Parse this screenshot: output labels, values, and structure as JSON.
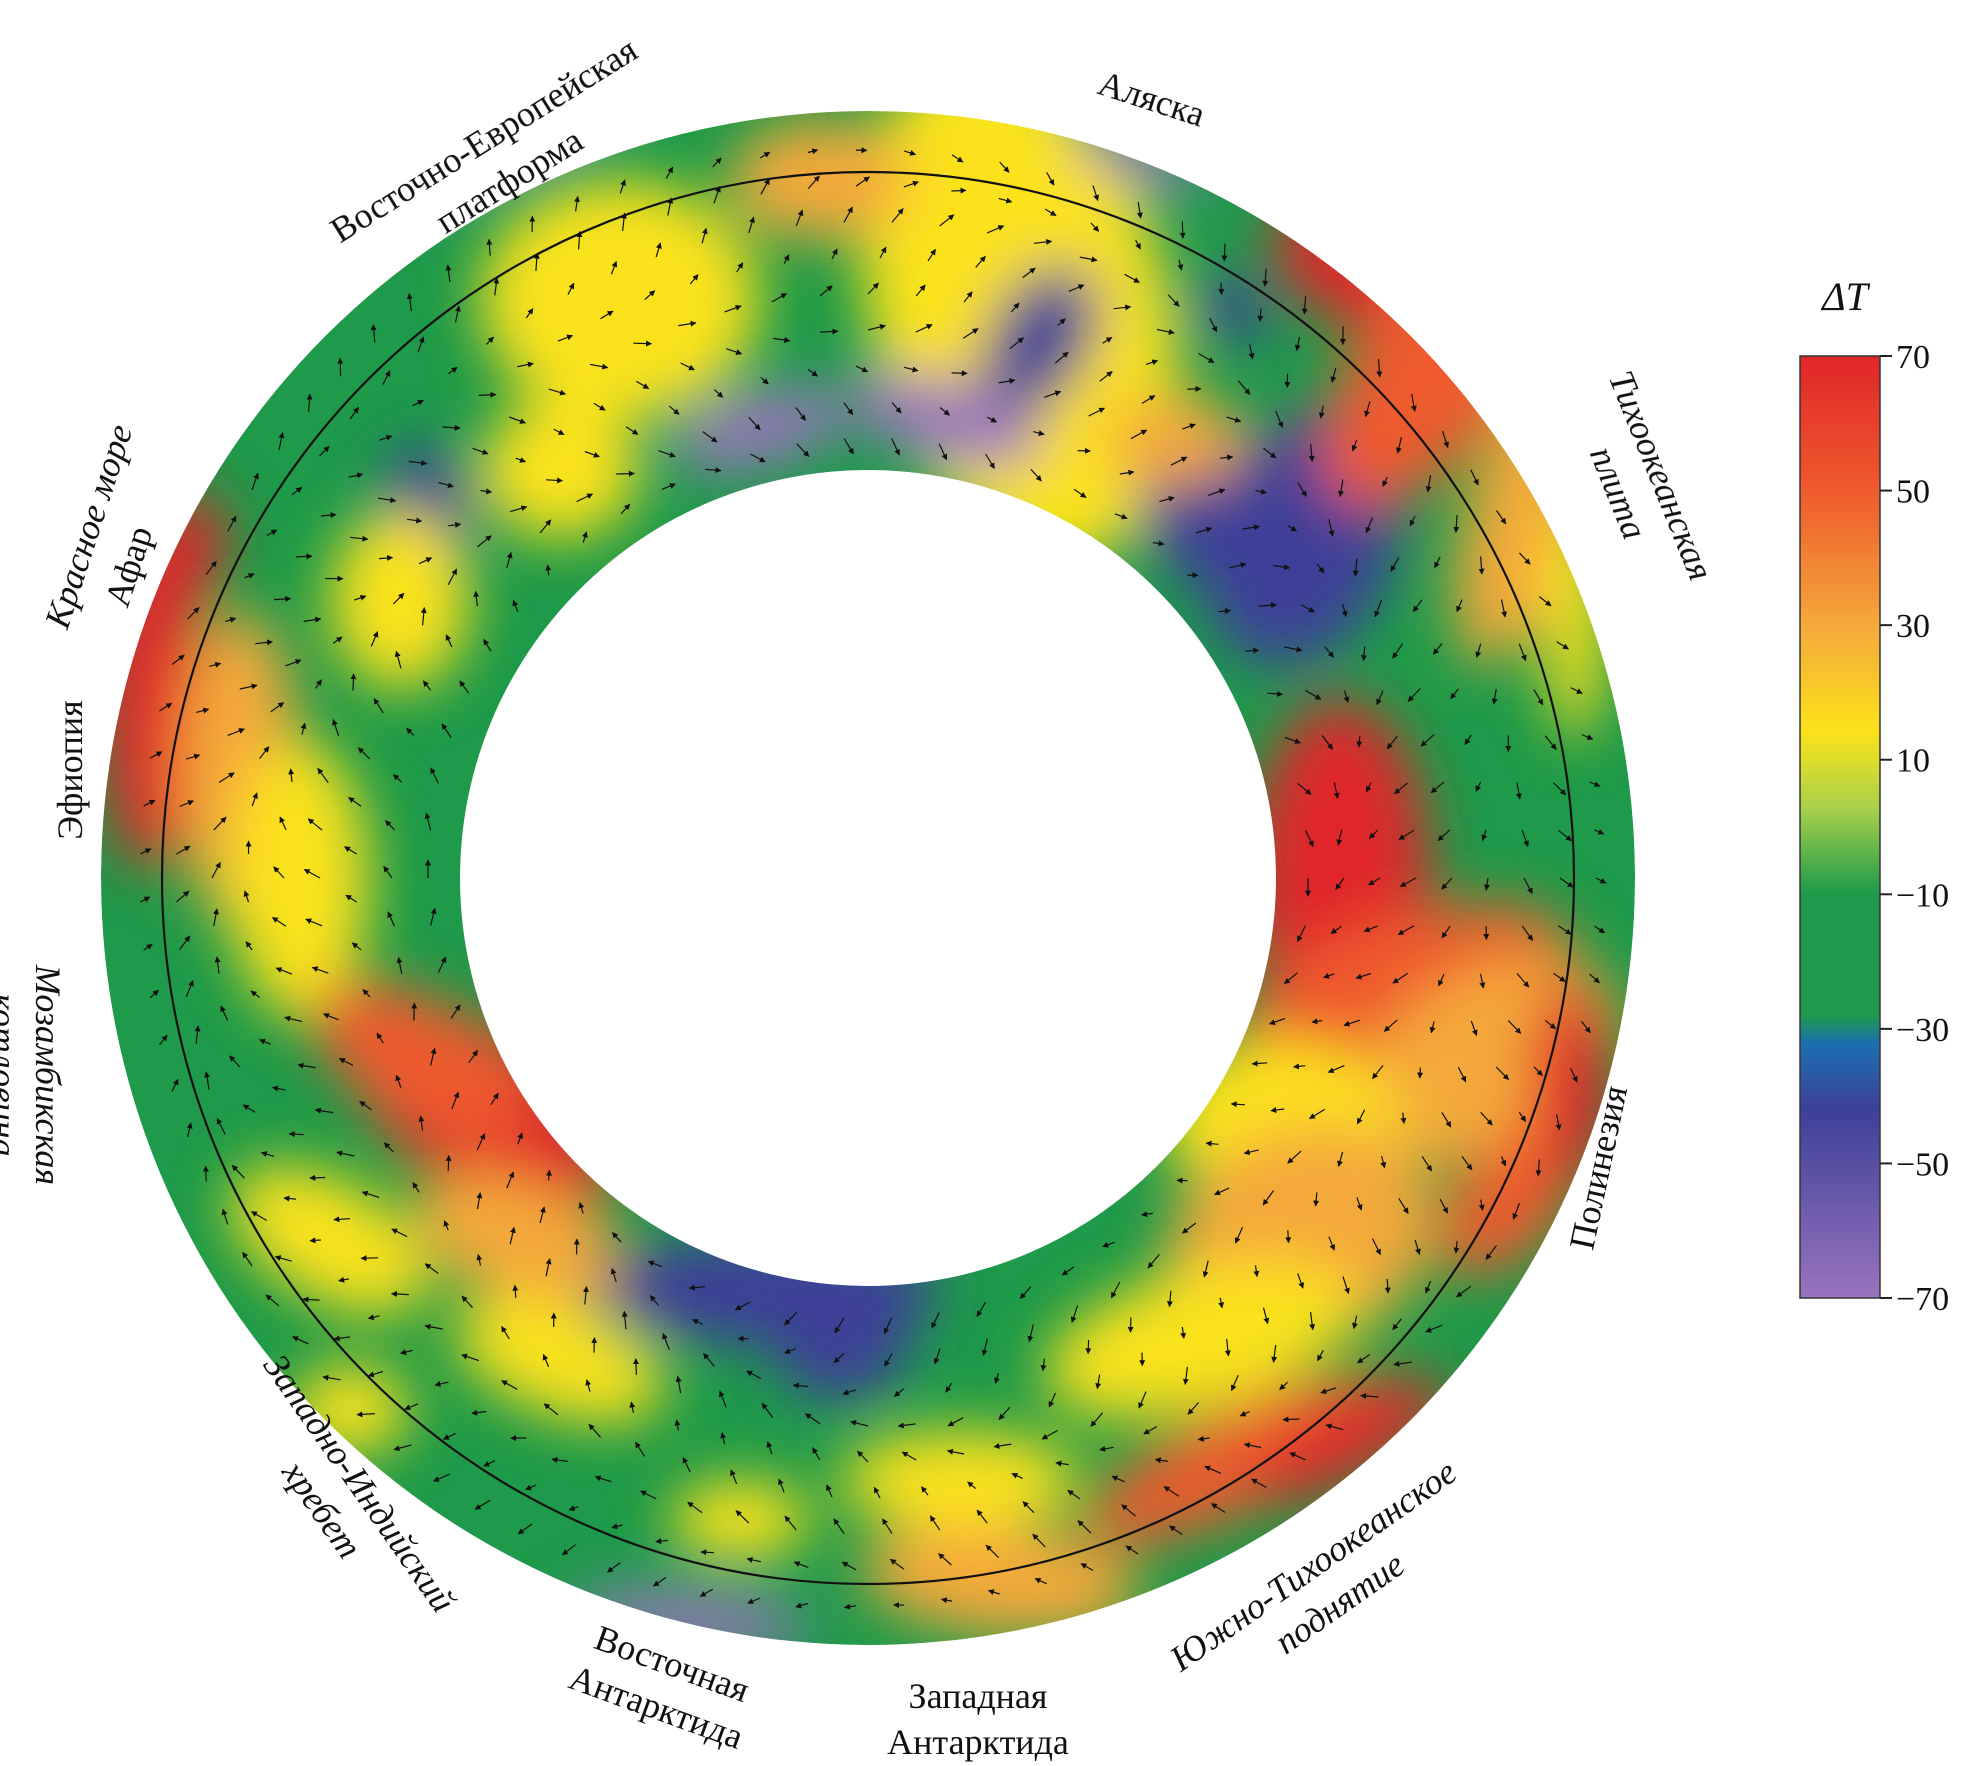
{
  "figure": {
    "colors": {
      "c70": "#e0262a",
      "c50": "#ef5a2d",
      "c30": "#f4a93a",
      "c10": "#fbe21a",
      "c0": "#a9d14a",
      "cm10": "#1e9a4a",
      "cm30": "#1c6fb0",
      "cm50": "#3c3f98",
      "cm70": "#9a74bd"
    }
  },
  "regions": [
    {
      "id": "vep",
      "line1": "Восточно-Европейская",
      "line2": "платформа",
      "italic": false
    },
    {
      "id": "alaska",
      "line1": "Аляска",
      "line2": "",
      "italic": false
    },
    {
      "id": "pacific",
      "line1": "Тихоокеанская",
      "line2": "плита",
      "italic": true
    },
    {
      "id": "redsea",
      "line1": "Красное море",
      "line2": "",
      "italic": true
    },
    {
      "id": "afar",
      "line1": "Афар",
      "line2": "",
      "italic": false
    },
    {
      "id": "ethiopia",
      "line1": "Эфиопия",
      "line2": "",
      "italic": false
    },
    {
      "id": "mozambique",
      "line1": "Мозамбикская",
      "line2": "котловина",
      "italic": true
    },
    {
      "id": "polynesia",
      "line1": "Полинезия",
      "line2": "",
      "italic": false
    },
    {
      "id": "wir",
      "line1": "Западно-Индийский",
      "line2": "хребет",
      "italic": true
    },
    {
      "id": "eant",
      "line1": "Восточная",
      "line2": "Антарктида",
      "italic": false
    },
    {
      "id": "want",
      "line1": "Западная",
      "line2": "Антарктида",
      "italic": false
    },
    {
      "id": "spr",
      "line1": "Южно-Тихоокеанское",
      "line2": "поднятие",
      "italic": true
    }
  ],
  "colorbar": {
    "title": "ΔT",
    "ticks": [
      "70",
      "50",
      "30",
      "10",
      "−10",
      "−30",
      "−50",
      "−70"
    ]
  }
}
